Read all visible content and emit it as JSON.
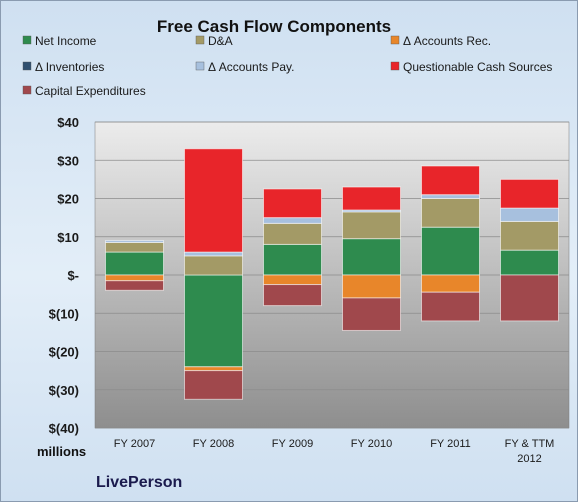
{
  "chart_data": {
    "type": "bar",
    "stacked": true,
    "title": "Free Cash Flow Components",
    "unit_label": "millions",
    "company": "LivePerson",
    "ylim": [
      -40,
      40
    ],
    "yticks": [
      40,
      30,
      20,
      10,
      0,
      -10,
      -20,
      -30,
      -40
    ],
    "ytick_labels": [
      "$40",
      "$30",
      "$20",
      "$10",
      "$-",
      "$(10)",
      "$(20)",
      "$(30)",
      "$(40)"
    ],
    "categories": [
      "FY 2007",
      "FY 2008",
      "FY 2009",
      "FY 2010",
      "FY 2011",
      "FY & TTM 2012"
    ],
    "legend_placement": "top",
    "series": [
      {
        "name": "Net Income",
        "color": "#2e8b4e",
        "values": [
          6.0,
          -24.0,
          8.0,
          9.5,
          12.5,
          6.5
        ]
      },
      {
        "name": "D&A",
        "color": "#a39a66",
        "values": [
          2.5,
          5.0,
          5.5,
          7.0,
          7.5,
          7.5
        ]
      },
      {
        "name": "Δ Accounts Rec.",
        "color": "#e8862a",
        "values": [
          -1.5,
          -1.0,
          -2.5,
          -6.0,
          -4.5,
          0.0
        ]
      },
      {
        "name": "Δ Inventories",
        "color": "#2f4f6f",
        "values": [
          0.0,
          0.0,
          0.0,
          0.0,
          0.0,
          0.0
        ]
      },
      {
        "name": "Δ Accounts Pay.",
        "color": "#a7c0de",
        "values": [
          0.5,
          1.0,
          1.5,
          0.5,
          1.0,
          3.5
        ]
      },
      {
        "name": "Questionable Cash Sources",
        "color": "#e8252a",
        "values": [
          0.0,
          27.0,
          7.5,
          6.0,
          7.5,
          7.5
        ]
      },
      {
        "name": "Capital Expenditures",
        "color": "#a0484c",
        "values": [
          -2.5,
          -7.5,
          -5.5,
          -8.5,
          -7.5,
          -12.0
        ]
      }
    ]
  }
}
